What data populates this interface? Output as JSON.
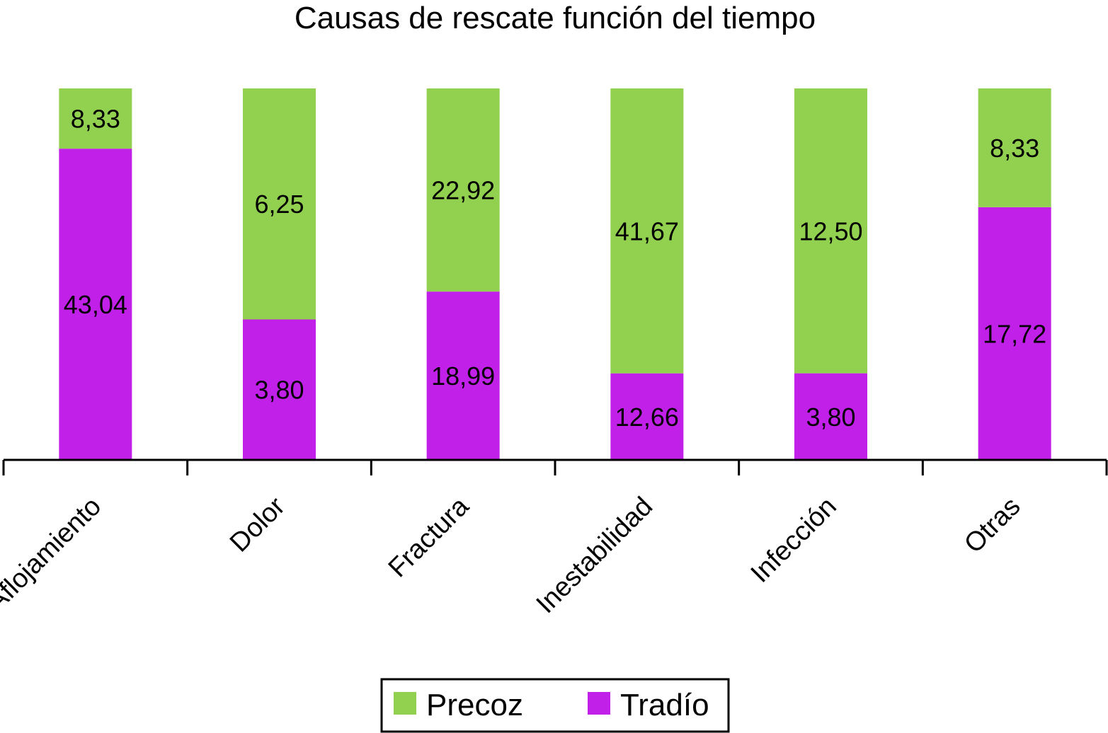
{
  "chart_data": {
    "type": "bar",
    "stacked": true,
    "normalized_percent": true,
    "title": "Causas de rescate función del tiempo",
    "categories": [
      "Aflojamiento",
      "Dolor",
      "Fractura",
      "Inestabilidad",
      "Infección",
      "Otras"
    ],
    "series": [
      {
        "name": "Tradío",
        "color": "#c020e8",
        "values": [
          43.04,
          3.8,
          18.99,
          12.66,
          3.8,
          17.72
        ],
        "labels": [
          "43,04",
          "3,80",
          "18,99",
          "12,66",
          "3,80",
          "17,72"
        ]
      },
      {
        "name": "Precoz",
        "color": "#92d050",
        "values": [
          8.33,
          6.25,
          22.92,
          41.67,
          12.5,
          8.33
        ],
        "labels": [
          "8,33",
          "6,25",
          "22,92",
          "41,67",
          "12,50",
          "8,33"
        ]
      }
    ],
    "legend": {
      "position": "bottom",
      "entries": [
        "Precoz",
        "Tradío"
      ]
    },
    "ylim": [
      0,
      100
    ],
    "grid": false,
    "x_tick_rotation_deg": -45
  }
}
